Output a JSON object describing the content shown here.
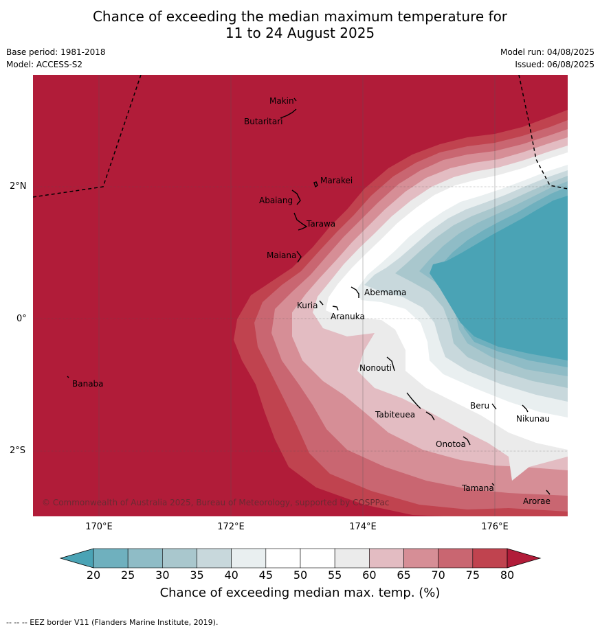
{
  "header": {
    "title_line1": "Chance of exceeding the median maximum temperature for",
    "title_line2": "11 to 24 August 2025",
    "base_period": "Base period: 1981-2018",
    "model": "Model: ACCESS-S2",
    "model_run": "Model run: 04/08/2025",
    "issued": "Issued: 06/08/2025"
  },
  "map": {
    "lat_labels": [
      "2°N",
      "0°",
      "2°S"
    ],
    "lon_labels": [
      "170°E",
      "172°E",
      "174°E",
      "176°E"
    ],
    "copyright": "© Commonwealth of Australia 2025, Bureau of Meteorology, supported by COSPPac",
    "places": [
      {
        "name": "Makin"
      },
      {
        "name": "Butaritari"
      },
      {
        "name": "Marakei"
      },
      {
        "name": "Abaiang"
      },
      {
        "name": "Tarawa"
      },
      {
        "name": "Maiana"
      },
      {
        "name": "Abemama"
      },
      {
        "name": "Kuria"
      },
      {
        "name": "Aranuka"
      },
      {
        "name": "Nonouti"
      },
      {
        "name": "Banaba"
      },
      {
        "name": "Tabiteuea"
      },
      {
        "name": "Beru"
      },
      {
        "name": "Nikunau"
      },
      {
        "name": "Onotoa"
      },
      {
        "name": "Tamana"
      },
      {
        "name": "Arorae"
      }
    ]
  },
  "colorbar": {
    "ticks": [
      "20",
      "25",
      "30",
      "35",
      "40",
      "45",
      "50",
      "55",
      "60",
      "65",
      "70",
      "75",
      "80"
    ],
    "colors": [
      "#4aa3b5",
      "#6fb0be",
      "#8fbcc6",
      "#a9c7cd",
      "#c8d8dc",
      "#e9eff0",
      "#ffffff",
      "#ffffff",
      "#ebebeb",
      "#e3bcc2",
      "#d68e96",
      "#c96671",
      "#c0434f",
      "#b11c39"
    ],
    "label": "Chance of exceeding median max. temp. (%)"
  },
  "footnote": "--  --  -- EEZ border V11 (Flanders Marine Institute, 2019)."
}
